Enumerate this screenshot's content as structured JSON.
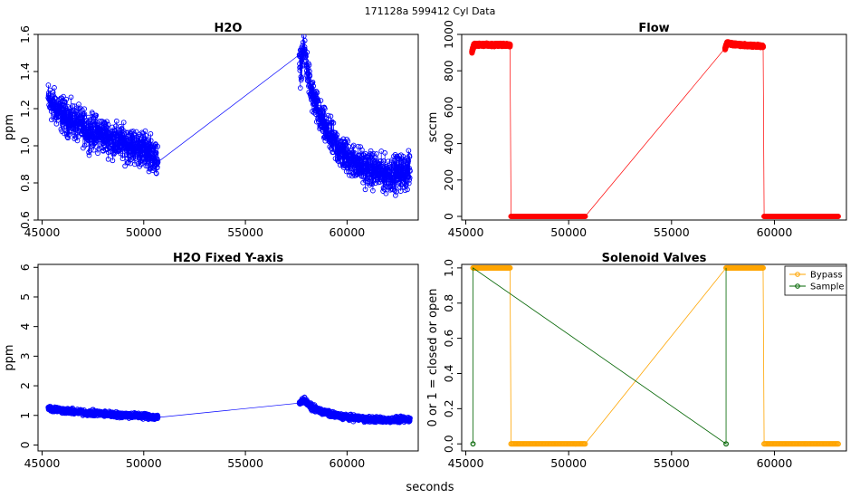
{
  "header": {
    "title": "171128a   599412   Cyl Data"
  },
  "footer": {
    "xlabel": "seconds"
  },
  "colors": {
    "h2o": "#0000ff",
    "flow": "#ff0000",
    "bypass": "#ffa500",
    "sample": "#006400"
  },
  "chart_data": [
    {
      "id": "h2o",
      "type": "scatter",
      "title": "H2O",
      "xlabel": "",
      "ylabel": "ppm",
      "xlim": [
        44800,
        63500
      ],
      "ylim": [
        0.6,
        1.6
      ],
      "xticks": [
        45000,
        50000,
        55000,
        60000
      ],
      "yticks": [
        0.6,
        0.8,
        1.0,
        1.2,
        1.4,
        1.6
      ],
      "series": [
        {
          "name": "H2O",
          "color": "#0000ff",
          "x": [
            45300,
            45500,
            45800,
            46100,
            46400,
            46700,
            47000,
            47300,
            47600,
            47900,
            48200,
            48500,
            48800,
            49100,
            49400,
            49700,
            50000,
            50300,
            50700,
            57700,
            57800,
            57900,
            58000,
            58200,
            58500,
            58800,
            59100,
            59400,
            59700,
            60000,
            60300,
            60600,
            60900,
            61200,
            61500,
            61800,
            62100,
            62400,
            62700,
            63000
          ],
          "y": [
            1.25,
            1.22,
            1.19,
            1.16,
            1.14,
            1.12,
            1.1,
            1.08,
            1.07,
            1.06,
            1.05,
            1.03,
            1.02,
            1.01,
            1.0,
            0.99,
            0.98,
            0.97,
            0.92,
            1.42,
            1.5,
            1.52,
            1.45,
            1.3,
            1.2,
            1.12,
            1.06,
            1.01,
            0.97,
            0.94,
            0.92,
            0.9,
            0.88,
            0.87,
            0.86,
            0.85,
            0.85,
            0.85,
            0.86,
            0.86
          ],
          "noise": 0.08
        }
      ]
    },
    {
      "id": "flow",
      "type": "scatter",
      "title": "Flow",
      "xlabel": "",
      "ylabel": "sccm",
      "xlim": [
        44800,
        63500
      ],
      "ylim": [
        -20,
        1000
      ],
      "xticks": [
        45000,
        50000,
        55000,
        60000
      ],
      "yticks": [
        0,
        200,
        400,
        600,
        800,
        1000
      ],
      "series": [
        {
          "name": "Flow",
          "color": "#ff0000",
          "x": [
            45300,
            45300,
            45400,
            45700,
            46000,
            46300,
            46600,
            46900,
            47150,
            47200,
            47500,
            48000,
            48500,
            49000,
            49500,
            50000,
            50500,
            50800,
            57600,
            57700,
            57800,
            58100,
            58400,
            58700,
            59000,
            59300,
            59450,
            59500,
            60000,
            60500,
            61000,
            61500,
            62000,
            62500,
            63000
          ],
          "y": [
            905,
            905,
            945,
            942,
            944,
            941,
            943,
            942,
            941,
            0,
            0,
            0,
            0,
            0,
            0,
            0,
            0,
            0,
            920,
            955,
            948,
            944,
            942,
            940,
            938,
            936,
            935,
            0,
            0,
            0,
            0,
            0,
            0,
            0,
            0
          ],
          "noise": 0
        }
      ]
    },
    {
      "id": "h2o-fixed",
      "type": "scatter",
      "title": "H2O Fixed Y-axis",
      "xlabel": "",
      "ylabel": "ppm",
      "xlim": [
        44800,
        63500
      ],
      "ylim": [
        -0.2,
        6.1
      ],
      "xticks": [
        45000,
        50000,
        55000,
        60000
      ],
      "yticks": [
        0,
        1,
        2,
        3,
        4,
        5,
        6
      ],
      "series": [
        {
          "name": "H2O",
          "color": "#0000ff",
          "x": [
            45300,
            45500,
            45800,
            46100,
            46400,
            46700,
            47000,
            47300,
            47600,
            47900,
            48200,
            48500,
            48800,
            49100,
            49400,
            49700,
            50000,
            50300,
            50700,
            57700,
            57800,
            57900,
            58000,
            58200,
            58500,
            58800,
            59100,
            59400,
            59700,
            60000,
            60300,
            60600,
            60900,
            61200,
            61500,
            61800,
            62100,
            62400,
            62700,
            63000
          ],
          "y": [
            1.25,
            1.22,
            1.19,
            1.16,
            1.14,
            1.12,
            1.1,
            1.08,
            1.07,
            1.06,
            1.05,
            1.03,
            1.02,
            1.01,
            1.0,
            0.99,
            0.98,
            0.97,
            0.92,
            1.42,
            1.5,
            1.52,
            1.45,
            1.3,
            1.2,
            1.12,
            1.06,
            1.01,
            0.97,
            0.94,
            0.92,
            0.9,
            0.88,
            0.87,
            0.86,
            0.85,
            0.85,
            0.85,
            0.86,
            0.86
          ],
          "noise": 0.08
        }
      ]
    },
    {
      "id": "valves",
      "type": "scatter",
      "title": "Solenoid Valves",
      "xlabel": "",
      "ylabel": "0 or 1 = closed or open",
      "xlim": [
        44800,
        63500
      ],
      "ylim": [
        -0.04,
        1.02
      ],
      "xticks": [
        45000,
        50000,
        55000,
        60000
      ],
      "yticks": [
        0.0,
        0.2,
        0.4,
        0.6,
        0.8,
        1.0
      ],
      "legend": {
        "position": "top-right",
        "entries": [
          "Bypass",
          "Sample"
        ]
      },
      "series": [
        {
          "name": "Bypass",
          "color": "#ffa500",
          "segments": [
            [
              45350,
              47150,
              1
            ],
            [
              47200,
              50800,
              0
            ],
            [
              57650,
              59450,
              1
            ],
            [
              59500,
              63100,
              0
            ]
          ]
        },
        {
          "name": "Sample",
          "color": "#006400",
          "x": [
            45350,
            45350,
            57650,
            57650
          ],
          "y": [
            0,
            1,
            0,
            1
          ]
        }
      ]
    }
  ]
}
